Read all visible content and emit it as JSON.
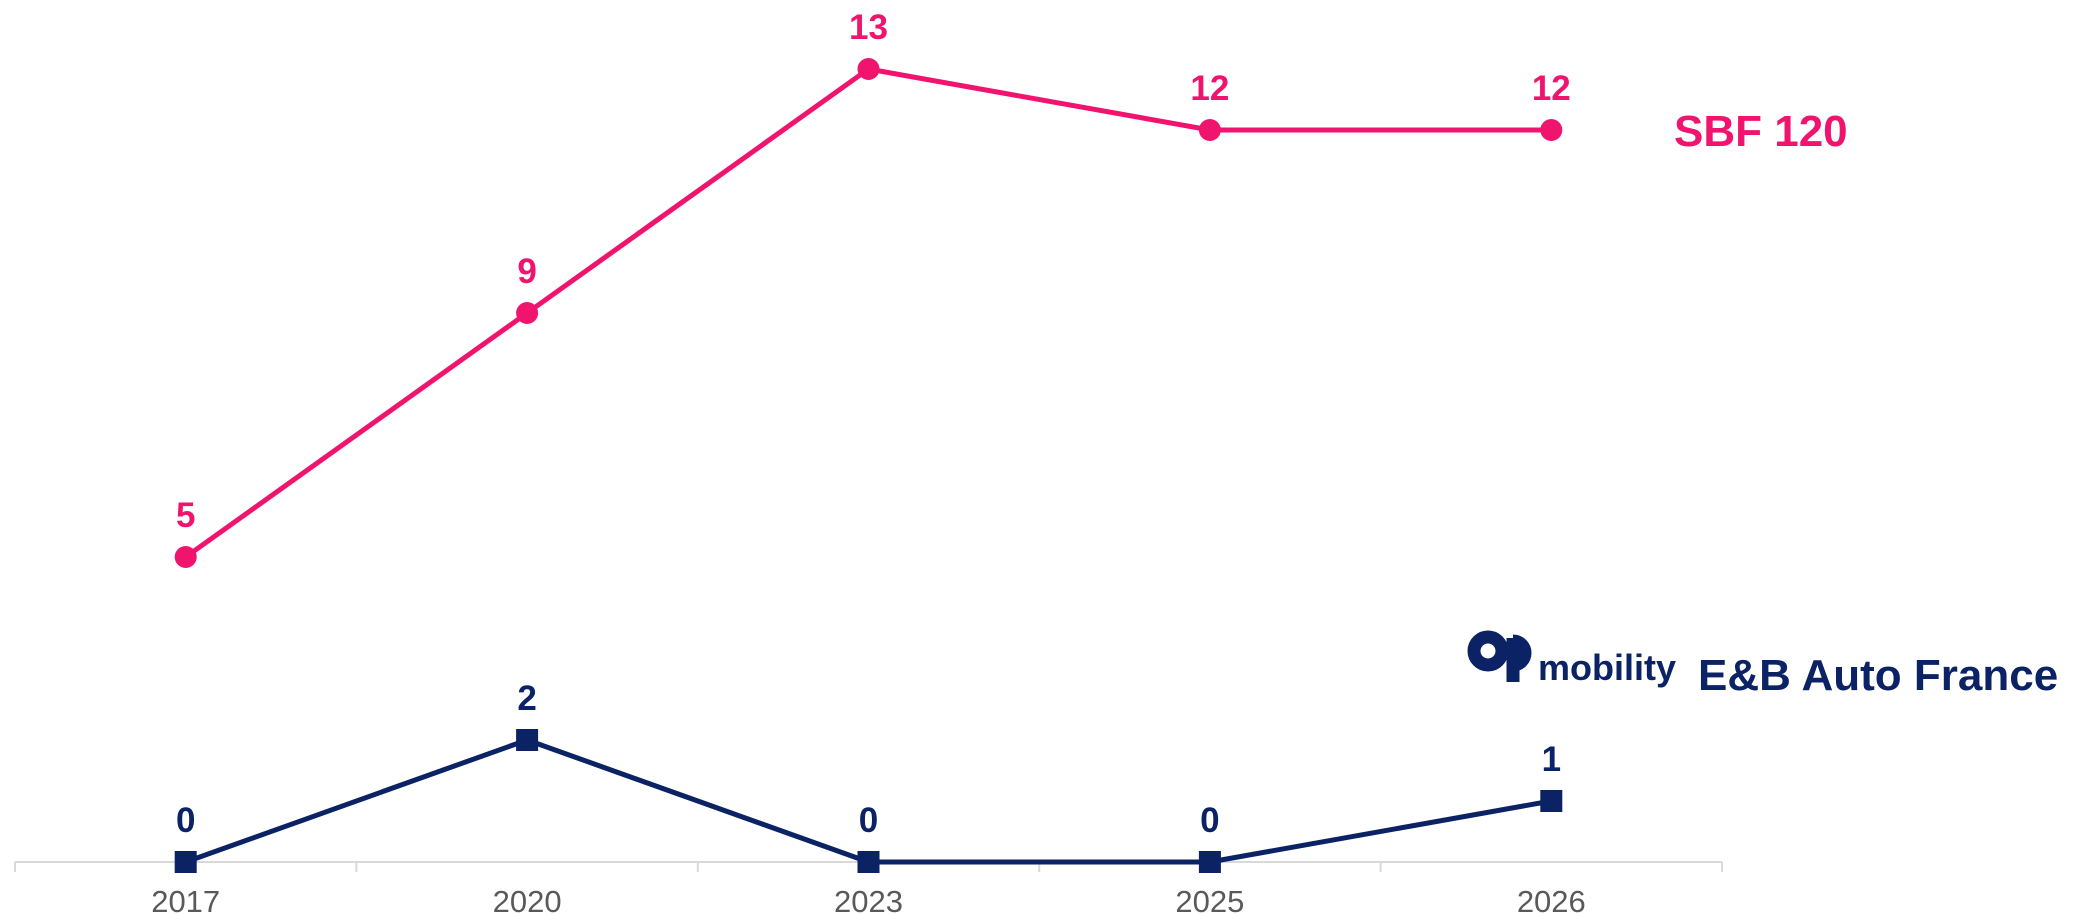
{
  "chart_data": {
    "type": "line",
    "categories": [
      "2017",
      "2020",
      "2023",
      "2025",
      "2026"
    ],
    "series": [
      {
        "name": "SBF 120",
        "values": [
          5,
          9,
          13,
          12,
          12
        ],
        "color": "#f0146e",
        "marker": "circle"
      },
      {
        "name": "E&B Auto France",
        "values": [
          0,
          2,
          0,
          0,
          1
        ],
        "color": "#0b2265",
        "marker": "square"
      }
    ],
    "ylim": [
      0,
      14
    ],
    "grid": false,
    "legend": "series names at right end of each line",
    "axis_color": "#d9d9d9",
    "tick_label_color": "#595959"
  },
  "logo": {
    "text": "mobility",
    "color": "#0b2265"
  }
}
